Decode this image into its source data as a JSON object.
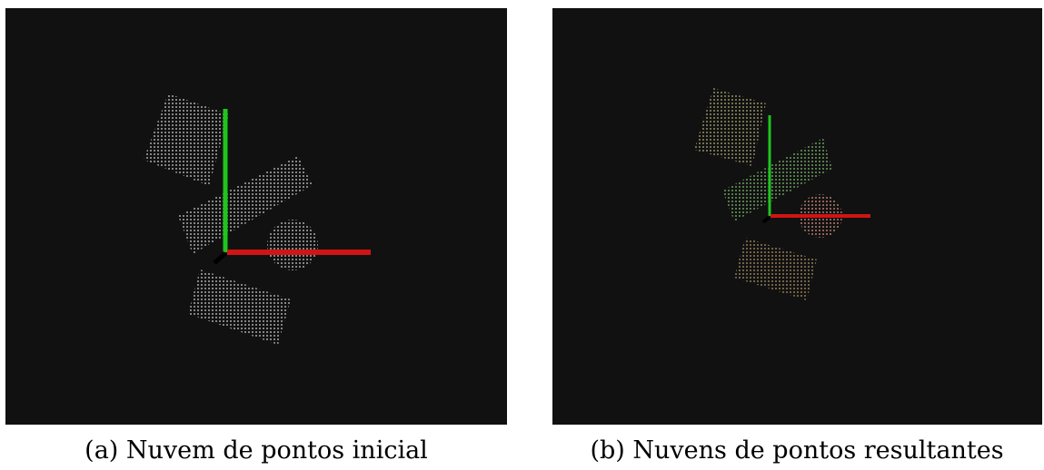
{
  "figure": {
    "subfigures": [
      {
        "caption": "(a) Nuvem de pontos inicial"
      },
      {
        "caption": "(b) Nuvens de pontos resultantes"
      }
    ]
  }
}
